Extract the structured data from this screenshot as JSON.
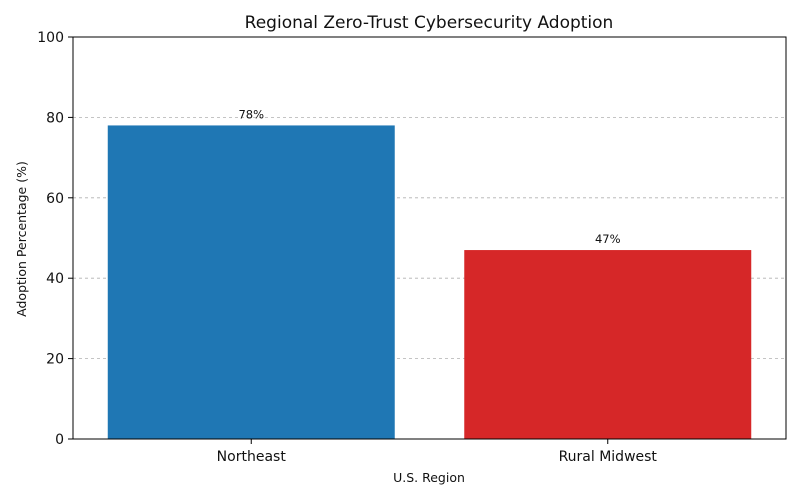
{
  "chart_data": {
    "type": "bar",
    "title": "Regional Zero-Trust Cybersecurity Adoption",
    "xlabel": "U.S. Region",
    "ylabel": "Adoption Percentage (%)",
    "categories": [
      "Northeast",
      "Rural Midwest"
    ],
    "values": [
      78,
      47
    ],
    "data_labels": [
      "78%",
      "47%"
    ],
    "colors": [
      "#1f77b4",
      "#d62728"
    ],
    "ylim": [
      0,
      100
    ],
    "yticks": [
      0,
      20,
      40,
      60,
      80,
      100
    ],
    "grid": true,
    "legend": "none"
  }
}
